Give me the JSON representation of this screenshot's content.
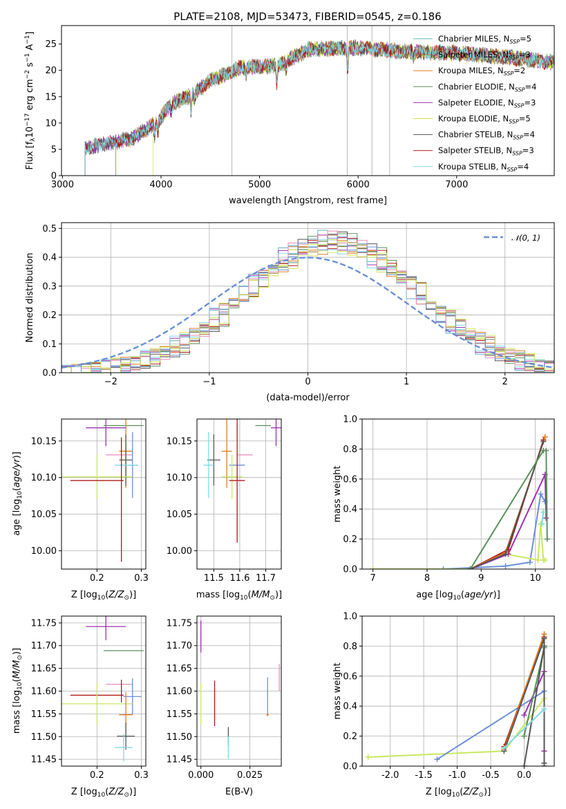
{
  "title": "PLATE=2108, MJD=53473, FIBERID=0545, z=0.186",
  "colors": {
    "Chabrier MILES": "#5cb0c0",
    "Salpeter MILES": "#9a6e3a",
    "Kroupa MILES": "#e07b20",
    "Chabrier ELODIE": "#5a8f5a",
    "Salpeter ELODIE": "#9b30b0",
    "Kroupa ELODIE": "#d4e050",
    "Chabrier STELIB": "#555555",
    "Salpeter STELIB": "#b01818",
    "Kroupa STELIB": "#80d8e0",
    "extra_pink": "#e88ab8",
    "extra_blue": "#6a8fd8",
    "extra_lime": "#c8e860",
    "normal_curve": "#6a8fd8",
    "grid": "#b0b0b0"
  },
  "legend_entries": [
    {
      "key": "Chabrier MILES",
      "label": "Chabrier MILES, N",
      "sub": "SSP",
      "tail": "=5"
    },
    {
      "key": "Salpeter MILES",
      "label": "Salpeter MILES, N",
      "sub": "SSP",
      "tail": "=3"
    },
    {
      "key": "Kroupa MILES",
      "label": "Kroupa MILES, N",
      "sub": "SSP",
      "tail": "=2"
    },
    {
      "key": "Chabrier ELODIE",
      "label": "Chabrier ELODIE, N",
      "sub": "SSP",
      "tail": "=4"
    },
    {
      "key": "Salpeter ELODIE",
      "label": "Salpeter ELODIE, N",
      "sub": "SSP",
      "tail": "=3"
    },
    {
      "key": "Kroupa ELODIE",
      "label": "Kroupa ELODIE, N",
      "sub": "SSP",
      "tail": "=5"
    },
    {
      "key": "Chabrier STELIB",
      "label": "Chabrier STELIB, N",
      "sub": "SSP",
      "tail": "=4"
    },
    {
      "key": "Salpeter STELIB",
      "label": "Salpeter STELIB, N",
      "sub": "SSP",
      "tail": "=3"
    },
    {
      "key": "Kroupa STELIB",
      "label": "Kroupa STELIB, N",
      "sub": "SSP",
      "tail": "=4"
    }
  ],
  "chart_data": [
    {
      "id": "spectrum",
      "type": "line",
      "xlabel": "wavelength [Angstrom, rest frame]",
      "ylabel": "Flux [f_λ 10^-17 erg cm^-2 s^-1 A^-1]",
      "ylabel_parts": [
        "Flux [f",
        "λ",
        "10",
        "−17",
        " erg cm",
        "−2",
        " s",
        "−1",
        " A",
        "−1",
        "]"
      ],
      "xlim": [
        2990,
        7990
      ],
      "ylim": [
        0,
        28.5
      ],
      "xticks": [
        3000,
        4000,
        5000,
        6000,
        7000
      ],
      "yticks": [
        0,
        5,
        10,
        15,
        20,
        25
      ],
      "grid": false,
      "legend_position": "right",
      "coverage_start": {
        "Chabrier MILES": 3230,
        "Salpeter MILES": 3540,
        "Kroupa MILES": 3540,
        "Chabrier ELODIE": 3230,
        "Salpeter ELODIE": 3230,
        "Kroupa ELODIE": 3920,
        "Chabrier STELIB": 3230,
        "Salpeter STELIB": 3230,
        "Kroupa STELIB": 3230
      },
      "continuum": [
        [
          3230,
          5.2
        ],
        [
          3500,
          6.3
        ],
        [
          3700,
          7.0
        ],
        [
          3950,
          10.0
        ],
        [
          4100,
          13.5
        ],
        [
          4300,
          15.2
        ],
        [
          4500,
          18.0
        ],
        [
          4800,
          20.5
        ],
        [
          5200,
          21.0
        ],
        [
          5500,
          24.0
        ],
        [
          6000,
          24.3
        ],
        [
          6500,
          23.5
        ],
        [
          7000,
          23.3
        ],
        [
          7500,
          22.5
        ],
        [
          7990,
          21.5
        ]
      ],
      "absorption_lines": [
        [
          3934,
          2.5
        ],
        [
          3969,
          2.2
        ],
        [
          4102,
          1.5
        ],
        [
          4304,
          3.0
        ],
        [
          4340,
          1.5
        ],
        [
          4861,
          1.5
        ],
        [
          5175,
          3.5
        ],
        [
          5270,
          1.5
        ],
        [
          5893,
          4.5
        ],
        [
          6563,
          1.2
        ]
      ],
      "masked_lines": [
        4720,
        5890,
        6140,
        6320
      ]
    },
    {
      "id": "residual-histogram",
      "type": "histogram",
      "xlabel": "(data-model)/error",
      "ylabel": "Normed distribution",
      "xlim": [
        -2.5,
        2.5
      ],
      "ylim": [
        0,
        0.52
      ],
      "xticks": [
        -2,
        -1,
        0,
        1,
        2
      ],
      "yticks": [
        0.0,
        0.1,
        0.2,
        0.3,
        0.4,
        0.5
      ],
      "grid": true,
      "normal_label": "𝒩(0, 1)",
      "legend_position": "top-right",
      "bin_width": 0.1,
      "center_shift": 0.25,
      "sigma": 0.85
    },
    {
      "id": "age-vs-Z",
      "type": "errorbar",
      "xlabel": "Z [log10(Z/Z☉)]",
      "ylabel": "age [log10(age/yr)]",
      "xlim": [
        0.12,
        0.31
      ],
      "ylim": [
        9.975,
        10.18
      ],
      "xticks": [
        0.2,
        0.3
      ],
      "yticks": [
        10.0,
        10.05,
        10.1,
        10.15
      ],
      "grid": true,
      "points": [
        {
          "color": "#9b30b0",
          "x": 0.22,
          "xerr": 0.045,
          "y": 10.168,
          "yerr": 0.025
        },
        {
          "color": "#5a8f5a",
          "x": 0.26,
          "xerr": 0.045,
          "y": 10.171,
          "yerr": 0.0
        },
        {
          "color": "#e07b20",
          "x": 0.265,
          "xerr": 0.015,
          "y": 10.136,
          "yerr": 0.05
        },
        {
          "color": "#e88ab8",
          "x": 0.25,
          "xerr": 0.03,
          "y": 10.131,
          "yerr": 0.0
        },
        {
          "color": "#555555",
          "x": 0.265,
          "xerr": 0.015,
          "y": 10.124,
          "yerr": 0.035
        },
        {
          "color": "#6a8fd8",
          "x": 0.28,
          "xerr": 0.012,
          "y": 10.117,
          "yerr": 0.045
        },
        {
          "color": "#80d8e0",
          "x": 0.265,
          "xerr": 0.025,
          "y": 10.117,
          "yerr": 0.0
        },
        {
          "color": "#c8e860",
          "x": 0.2,
          "xerr": 0.08,
          "y": 10.101,
          "yerr": 0.03
        },
        {
          "color": "#b01818",
          "x": 0.2,
          "xerr": 0.06,
          "y": 10.096,
          "yerr": 0.0
        },
        {
          "color": "#b01818",
          "x": 0.255,
          "xerr": 0.0,
          "y": 10.07,
          "yerr": 0.085
        }
      ]
    },
    {
      "id": "age-vs-mass",
      "type": "errorbar",
      "xlabel": "mass [log10(M/M☉)]",
      "ylabel": "",
      "xlim": [
        11.435,
        11.76
      ],
      "ylim": [
        9.975,
        10.18
      ],
      "xticks": [
        11.5,
        11.6,
        11.7
      ],
      "yticks": [
        10.0,
        10.05,
        10.1,
        10.15
      ],
      "grid": true,
      "points": [
        {
          "color": "#5a8f5a",
          "x": 11.69,
          "xerr": 0.03,
          "y": 10.171,
          "yerr": 0.0
        },
        {
          "color": "#9b30b0",
          "x": 11.74,
          "xerr": 0.02,
          "y": 10.168,
          "yerr": 0.025
        },
        {
          "color": "#e07b20",
          "x": 11.55,
          "xerr": 0.02,
          "y": 10.136,
          "yerr": 0.05
        },
        {
          "color": "#e88ab8",
          "x": 11.62,
          "xerr": 0.03,
          "y": 10.131,
          "yerr": 0.0
        },
        {
          "color": "#555555",
          "x": 11.5,
          "xerr": 0.025,
          "y": 10.124,
          "yerr": 0.035
        },
        {
          "color": "#80d8e0",
          "x": 11.48,
          "xerr": 0.02,
          "y": 10.117,
          "yerr": 0.045
        },
        {
          "color": "#6a8fd8",
          "x": 11.59,
          "xerr": 0.03,
          "y": 10.117,
          "yerr": 0.0
        },
        {
          "color": "#c8e860",
          "x": 11.57,
          "xerr": 0.04,
          "y": 10.101,
          "yerr": 0.03
        },
        {
          "color": "#b01818",
          "x": 11.59,
          "xerr": 0.03,
          "y": 10.096,
          "yerr": 0.085
        }
      ]
    },
    {
      "id": "mass-weight-vs-age",
      "type": "line",
      "xlabel": "age [log10(age/yr)]",
      "ylabel": "mass weight",
      "xlim": [
        6.8,
        10.35
      ],
      "ylim": [
        0,
        1.0
      ],
      "xticks": [
        7,
        8,
        9,
        10
      ],
      "yticks": [
        0.0,
        0.2,
        0.4,
        0.6,
        0.8,
        1.0
      ],
      "grid": true,
      "series": [
        {
          "color": "#6a8fd8",
          "x": [
            7.0,
            8.3,
            9.45,
            9.9,
            10.1,
            10.18
          ],
          "y": [
            0.0,
            0.0,
            0.02,
            0.045,
            0.5,
            0.45
          ]
        },
        {
          "color": "#c8e860",
          "x": [
            7.0,
            8.8,
            9.45,
            10.05,
            10.1,
            10.15,
            10.18
          ],
          "y": [
            0.0,
            0.0,
            0.1,
            0.06,
            0.3,
            0.06,
            0.06
          ]
        },
        {
          "color": "#9b30b0",
          "x": [
            8.8,
            9.5,
            10.18,
            10.2
          ],
          "y": [
            0.0,
            0.1,
            0.63,
            0.34
          ]
        },
        {
          "color": "#b01818",
          "x": [
            8.8,
            9.5,
            10.15
          ],
          "y": [
            0.0,
            0.13,
            0.86
          ]
        },
        {
          "color": "#e07b20",
          "x": [
            8.8,
            9.45,
            10.18
          ],
          "y": [
            0.0,
            0.11,
            0.88
          ]
        },
        {
          "color": "#555555",
          "x": [
            8.8,
            9.45,
            10.15
          ],
          "y": [
            0.0,
            0.1,
            0.85
          ]
        },
        {
          "color": "#5a8f5a",
          "x": [
            8.8,
            10.15,
            10.2,
            10.22
          ],
          "y": [
            0.0,
            0.79,
            0.79,
            0.2
          ]
        },
        {
          "color": "#80d8e0",
          "x": [
            10.12,
            10.15
          ],
          "y": [
            0.3,
            0.38
          ]
        }
      ]
    },
    {
      "id": "mass-vs-Z",
      "type": "errorbar",
      "xlabel": "Z [log10(Z/Z☉)]",
      "ylabel": "mass [log10(M/M☉)]",
      "xlim": [
        0.12,
        0.31
      ],
      "ylim": [
        11.435,
        11.765
      ],
      "xticks": [
        0.2,
        0.3
      ],
      "yticks": [
        11.45,
        11.5,
        11.55,
        11.6,
        11.65,
        11.7,
        11.75
      ],
      "grid": true,
      "points": [
        {
          "color": "#9b30b0",
          "x": 0.22,
          "xerr": 0.045,
          "y": 11.742,
          "yerr": 0.03
        },
        {
          "color": "#5a8f5a",
          "x": 0.26,
          "xerr": 0.045,
          "y": 11.689,
          "yerr": 0.0
        },
        {
          "color": "#e88ab8",
          "x": 0.25,
          "xerr": 0.03,
          "y": 11.615,
          "yerr": 0.0
        },
        {
          "color": "#6a8fd8",
          "x": 0.28,
          "xerr": 0.02,
          "y": 11.588,
          "yerr": 0.04
        },
        {
          "color": "#b01818",
          "x": 0.2,
          "xerr": 0.06,
          "y": 11.591,
          "yerr": 0.0
        },
        {
          "color": "#b01818",
          "x": 0.255,
          "xerr": 0.0,
          "y": 11.6,
          "yerr": 0.025
        },
        {
          "color": "#c8e860",
          "x": 0.2,
          "xerr": 0.08,
          "y": 11.572,
          "yerr": 0.045
        },
        {
          "color": "#e07b20",
          "x": 0.265,
          "xerr": 0.015,
          "y": 11.548,
          "yerr": 0.05
        },
        {
          "color": "#555555",
          "x": 0.265,
          "xerr": 0.02,
          "y": 11.501,
          "yerr": 0.03
        },
        {
          "color": "#80d8e0",
          "x": 0.26,
          "xerr": 0.02,
          "y": 11.476,
          "yerr": 0.03
        }
      ]
    },
    {
      "id": "mass-vs-ebv",
      "type": "errorbar",
      "xlabel": "E(B-V)",
      "ylabel": "",
      "xlim": [
        -0.002,
        0.041
      ],
      "ylim": [
        11.435,
        11.765
      ],
      "xticks": [
        0.0,
        0.025
      ],
      "yticks": [
        11.45,
        11.5,
        11.55,
        11.6,
        11.65,
        11.7,
        11.75
      ],
      "grid": true,
      "points": [
        {
          "color": "#9b30b0",
          "x": 0.0,
          "xerr": 0.0,
          "y": 11.72,
          "yerr": 0.035
        },
        {
          "color": "#c8e860",
          "x": 0.0,
          "xerr": 0.0,
          "y": 11.572,
          "yerr": 0.045
        },
        {
          "color": "#e88ab8",
          "x": 0.04,
          "xerr": 0.0,
          "y": 11.63,
          "yerr": 0.03
        },
        {
          "color": "#6a8fd8",
          "x": 0.034,
          "xerr": 0.0,
          "y": 11.59,
          "yerr": 0.04
        },
        {
          "color": "#e07b20",
          "x": 0.034,
          "xerr": 0.0,
          "y": 11.548,
          "yerr": 0.0
        },
        {
          "color": "#b01818",
          "x": 0.007,
          "xerr": 0.0,
          "y": 11.573,
          "yerr": 0.05
        },
        {
          "color": "#555555",
          "x": 0.014,
          "xerr": 0.0,
          "y": 11.501,
          "yerr": 0.02
        },
        {
          "color": "#80d8e0",
          "x": 0.014,
          "xerr": 0.0,
          "y": 11.475,
          "yerr": 0.025
        }
      ]
    },
    {
      "id": "mass-weight-vs-Z",
      "type": "line",
      "xlabel": "Z [log10(Z/Z☉)]",
      "ylabel": "mass weight",
      "xlim": [
        -2.42,
        0.45
      ],
      "ylim": [
        0,
        1.0
      ],
      "xticks": [
        -2.0,
        -1.5,
        -1.0,
        -0.5,
        0.0
      ],
      "yticks": [
        0.0,
        0.2,
        0.4,
        0.6,
        0.8,
        1.0
      ],
      "grid": true,
      "series": [
        {
          "color": "#c8e860",
          "x": [
            -2.33,
            -0.3,
            0.3
          ],
          "y": [
            0.06,
            0.1,
            0.45
          ]
        },
        {
          "color": "#6a8fd8",
          "x": [
            -1.3,
            0.3,
            0.3
          ],
          "y": [
            0.045,
            0.5,
            0.02
          ]
        },
        {
          "color": "#9b30b0",
          "x": [
            0.0,
            0.3,
            0.3
          ],
          "y": [
            0.34,
            0.63,
            0.1
          ]
        },
        {
          "color": "#b01818",
          "x": [
            -0.3,
            0.3,
            0.3
          ],
          "y": [
            0.13,
            0.86,
            0.0
          ]
        },
        {
          "color": "#e07b20",
          "x": [
            -0.3,
            0.3,
            0.3
          ],
          "y": [
            0.11,
            0.88,
            0.0
          ]
        },
        {
          "color": "#555555",
          "x": [
            -0.3,
            0.3,
            0.3
          ],
          "y": [
            0.1,
            0.85,
            0.0
          ]
        },
        {
          "color": "#5a8f5a",
          "x": [
            0.0,
            0.3,
            0.3
          ],
          "y": [
            0.2,
            0.79,
            0.0
          ]
        },
        {
          "color": "#555555",
          "x": [
            0.0,
            0.3,
            0.3
          ],
          "y": [
            0.0,
            0.8,
            0.02
          ]
        },
        {
          "color": "#80d8e0",
          "x": [
            -0.3,
            0.3
          ],
          "y": [
            0.12,
            0.38
          ]
        }
      ]
    }
  ]
}
